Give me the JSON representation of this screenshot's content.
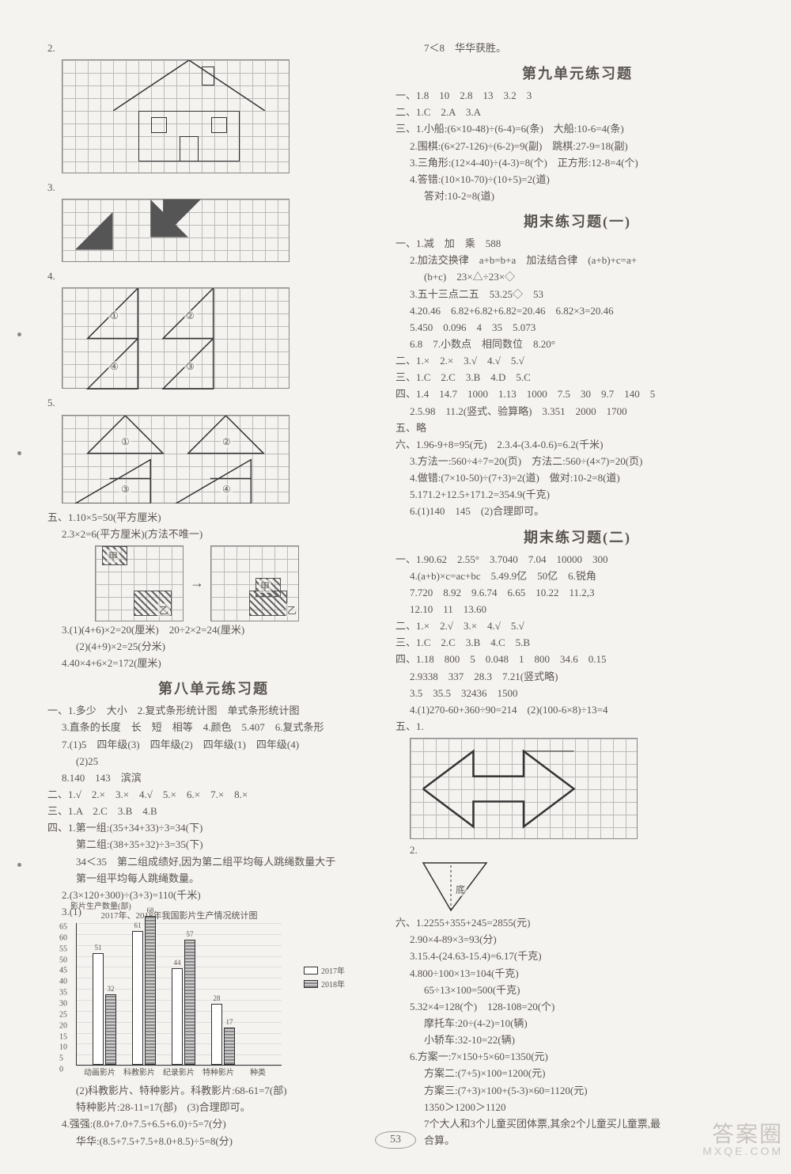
{
  "page_number": "53",
  "watermark": {
    "main": "答案圈",
    "sub": "MXQE.COM"
  },
  "left": {
    "fig2_num": "2.",
    "fig3_num": "3.",
    "fig4_num": "4.",
    "fig4_labels": [
      "①",
      "②",
      "③",
      "④"
    ],
    "fig5_num": "5.",
    "fig5_labels": [
      "①",
      "②",
      "③",
      "④"
    ],
    "wu_1": "五、1.10×5=50(平方厘米)",
    "wu_2": "2.3×2=6(平方厘米)(方法不唯一)",
    "wu_fig_labels": [
      "甲",
      "乙",
      "甲",
      "乙"
    ],
    "wu_3a": "3.(1)(4+6)×2=20(厘米)　20÷2×2=24(厘米)",
    "wu_3b": "(2)(4+9)×2=25(分米)",
    "wu_4": "4.40×4+6×2=172(厘米)",
    "sec8_title": "第八单元练习题",
    "s8_1_1": "一、1.多少　大小　2.复式条形统计图　单式条形统计图",
    "s8_1_3": "3.直条的长度　长　短　相等　4.颜色　5.407　6.复式条形",
    "s8_1_7a": "7.(1)5　四年级(3)　四年级(2)　四年级(1)　四年级(4)",
    "s8_1_7b": "(2)25",
    "s8_1_8": "8.140　143　滨滨",
    "s8_2": "二、1.√　2.×　3.×　4.√　5.×　6.×　7.×　8.×",
    "s8_3": "三、1.A　2.C　3.B　4.B",
    "s8_4_1a": "四、1.第一组:(35+34+33)÷3=34(下)",
    "s8_4_1b": "第二组:(38+35+32)÷3=35(下)",
    "s8_4_1c": "34＜35　第二组成绩好,因为第二组平均每人跳绳数量大于",
    "s8_4_1d": "第一组平均每人跳绳数量。",
    "s8_4_2": "2.(3×120+300)÷(3+3)=110(千米)",
    "s8_4_3": "3.(1)",
    "chart": {
      "title": "2017年、2018年我国影片生产情况统计图",
      "ylabel": "影片生产数量(部)",
      "yticks": [
        "0",
        "5",
        "10",
        "15",
        "20",
        "25",
        "30",
        "35",
        "40",
        "45",
        "50",
        "55",
        "60",
        "65"
      ],
      "categories": [
        "动画影片",
        "科教影片",
        "纪录影片",
        "特种影片",
        "种类"
      ],
      "series": [
        {
          "name": "2017年",
          "values": [
            51,
            61,
            44,
            28
          ]
        },
        {
          "name": "2018年",
          "values": [
            32,
            68,
            57,
            17
          ]
        }
      ],
      "val_labels": [
        "51",
        "32",
        "61",
        "68",
        "44",
        "57",
        "28",
        "17"
      ],
      "legend": [
        "2017年",
        "2018年"
      ],
      "ymax": 65
    },
    "s8_4_3b": "(2)科教影片、特种影片。科教影片:68-61=7(部)",
    "s8_4_3c": "特种影片:28-11=17(部)　(3)合理即可。",
    "s8_4_4a": "4.强强:(8.0+7.0+7.5+6.5+6.0)÷5=7(分)",
    "s8_4_4b": "华华:(8.5+7.5+7.5+8.0+8.5)÷5=8(分)"
  },
  "right": {
    "top": "7＜8　华华获胜。",
    "sec9_title": "第九单元练习题",
    "s9_1": "一、1.8　10　2.8　13　3.2　3",
    "s9_2": "二、1.C　2.A　3.A",
    "s9_3_1": "三、1.小船:(6×10-48)÷(6-4)=6(条)　大船:10-6=4(条)",
    "s9_3_2": "2.围棋:(6×27-126)÷(6-2)=9(副)　跳棋:27-9=18(副)",
    "s9_3_3": "3.三角形:(12×4-40)÷(4-3)=8(个)　正方形:12-8=4(个)",
    "s9_3_4a": "4.答错:(10×10-70)÷(10+5)=2(道)",
    "s9_3_4b": "答对:10-2=8(道)",
    "final1_title": "期末练习题(一)",
    "f1_1_1": "一、1.减　加　乘　588",
    "f1_1_2a": "2.加法交换律　a+b=b+a　加法结合律　(a+b)+c=a+",
    "f1_1_2b": "(b+c)　23×△÷23×◇",
    "f1_1_3": "3.五十三点二五　53.25◇　53",
    "f1_1_4": "4.20.46　6.82+6.82+6.82=20.46　6.82×3=20.46",
    "f1_1_5": "5.450　0.096　4　35　5.073",
    "f1_1_6": "6.8　7.小数点　相同数位　8.20°",
    "f1_2": "二、1.×　2.×　3.√　4.√　5.√",
    "f1_3": "三、1.C　2.C　3.B　4.D　5.C",
    "f1_4a": "四、1.4　14.7　1000　1.13　1000　7.5　30　9.7　140　5",
    "f1_4b": "2.5.98　11.2(竖式、验算略)　3.351　2000　1700",
    "f1_5": "五、略",
    "f1_6_1": "六、1.96-9+8=95(元)　2.3.4-(3.4-0.6)=6.2(千米)",
    "f1_6_3": "3.方法一:560÷4÷7=20(页)　方法二:560÷(4×7)=20(页)",
    "f1_6_4": "4.做错:(7×10-50)÷(7+3)=2(道)　做对:10-2=8(道)",
    "f1_6_5": "5.171.2+12.5+171.2=354.9(千克)",
    "f1_6_6": "6.(1)140　145　(2)合理即可。",
    "final2_title": "期末练习题(二)",
    "f2_1_1": "一、1.90.62　2.55°　3.7040　7.04　10000　300",
    "f2_1_4": "4.(a+b)×c=ac+bc　5.49.9亿　50亿　6.锐角",
    "f2_1_7": "7.720　8.92　9.6.74　6.65　10.22　11.2,3",
    "f2_1_12": "12.10　11　13.60",
    "f2_2": "二、1.×　2.√　3.×　4.√　5.√",
    "f2_3": "三、1.C　2.C　3.B　4.C　5.B",
    "f2_4a": "四、1.18　800　5　0.048　1　800　34.6　0.15",
    "f2_4b": "2.9338　337　28.3　7.21(竖式略)",
    "f2_4c": "3.5　35.5　32436　1500",
    "f2_4d": "4.(1)270-60+360÷90=214　(2)(100-6×8)÷13=4",
    "f2_5": "五、1.",
    "f2_5_2": "2.",
    "f2_5_2_label": "底",
    "f2_6_1": "六、1.2255+355+245=2855(元)",
    "f2_6_2": "2.90×4-89×3=93(分)",
    "f2_6_3": "3.15.4-(24.63-15.4)=6.17(千克)",
    "f2_6_4a": "4.800÷100×13=104(千克)",
    "f2_6_4b": "65÷13×100=500(千克)",
    "f2_6_5a": "5.32×4=128(个)　128-108=20(个)",
    "f2_6_5b": "摩托车:20÷(4-2)=10(辆)",
    "f2_6_5c": "小轿车:32-10=22(辆)",
    "f2_6_6a": "6.方案一:7×150+5×60=1350(元)",
    "f2_6_6b": "方案二:(7+5)×100=1200(元)",
    "f2_6_6c": "方案三:(7+3)×100+(5-3)×60=1120(元)",
    "f2_6_6d": "1350＞1200＞1120",
    "f2_6_6e": "7个大人和3个儿童买团体票,其余2个儿童买儿童票,最",
    "f2_6_6f": "合算。"
  }
}
